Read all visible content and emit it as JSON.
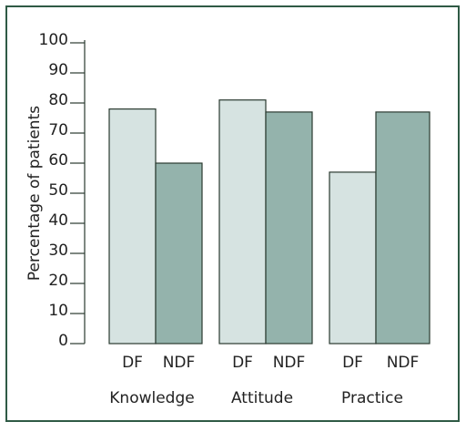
{
  "chart_data": {
    "type": "bar",
    "y_label": "Percentage of patients",
    "categories": [
      "Knowledge",
      "Attitude",
      "Practice"
    ],
    "series": [
      {
        "name": "DF",
        "color": "#d6e3e1",
        "values": [
          78,
          81,
          57
        ]
      },
      {
        "name": "NDF",
        "color": "#94b3ac",
        "values": [
          60,
          77,
          77
        ]
      }
    ],
    "ylim": [
      0,
      100
    ],
    "yticks": [
      0,
      10,
      20,
      30,
      40,
      50,
      60,
      70,
      80,
      90,
      100
    ]
  }
}
